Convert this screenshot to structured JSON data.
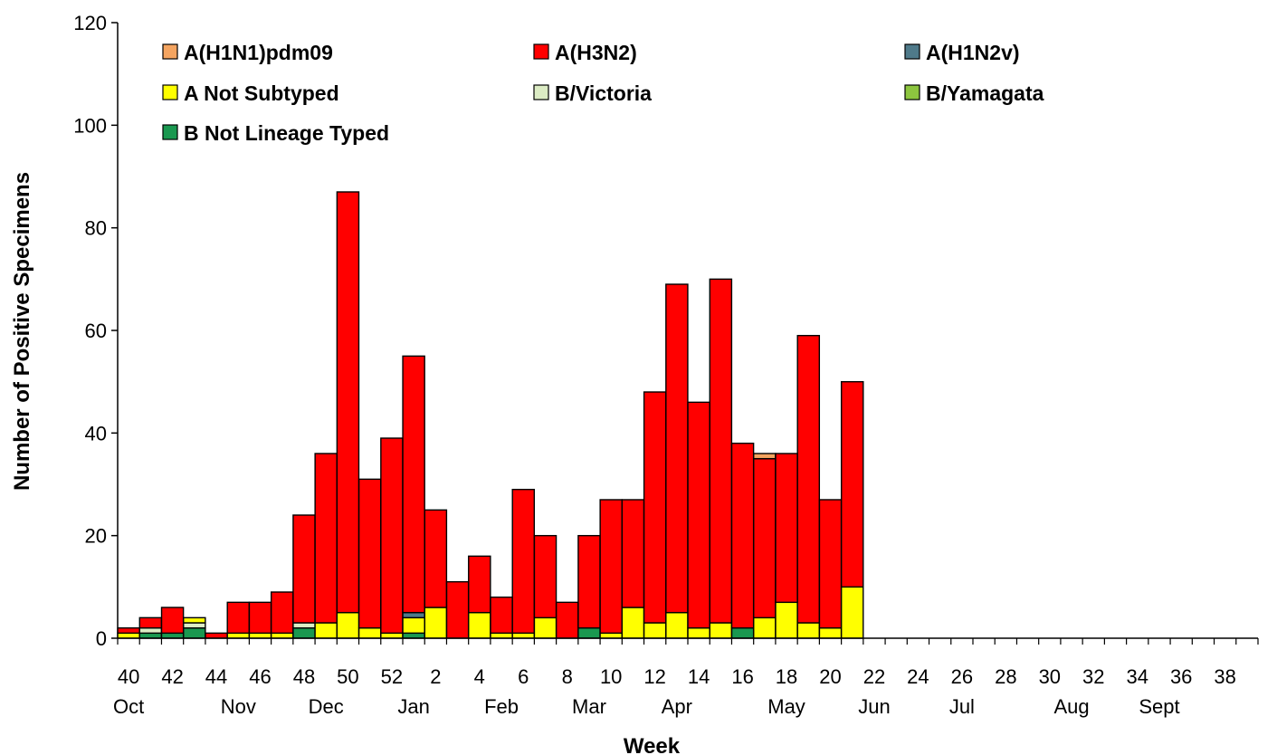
{
  "chart_data": {
    "type": "bar",
    "stacked": true,
    "title": "",
    "xlabel": "Week",
    "ylabel": "Number of Positive Specimens",
    "ylim": [
      0,
      120
    ],
    "yticks": [
      "0",
      "20",
      "40",
      "60",
      "80",
      "100",
      "120"
    ],
    "grid": false,
    "legend_placement": "top-left",
    "categories": [
      "40",
      "41",
      "42",
      "43",
      "44",
      "45",
      "46",
      "47",
      "48",
      "49",
      "50",
      "51",
      "52",
      "1",
      "2",
      "3",
      "4",
      "5",
      "6",
      "7",
      "8",
      "9",
      "10",
      "11",
      "12",
      "13",
      "14",
      "15",
      "16",
      "17",
      "18",
      "19",
      "20",
      "21",
      "22",
      "23",
      "24",
      "25",
      "26",
      "27",
      "28",
      "29",
      "30",
      "31",
      "32",
      "33",
      "34",
      "35",
      "36",
      "37",
      "38",
      "39"
    ],
    "tick_labels": [
      "40",
      "42",
      "44",
      "46",
      "48",
      "50",
      "52",
      "2",
      "4",
      "6",
      "8",
      "10",
      "12",
      "14",
      "16",
      "18",
      "20",
      "22",
      "24",
      "26",
      "28",
      "30",
      "32",
      "34",
      "36",
      "38"
    ],
    "month_labels": [
      {
        "label": "Oct",
        "at": "40"
      },
      {
        "label": "Nov",
        "at": "45"
      },
      {
        "label": "Dec",
        "at": "49"
      },
      {
        "label": "Jan",
        "at": "1"
      },
      {
        "label": "Feb",
        "at": "5"
      },
      {
        "label": "Mar",
        "at": "9"
      },
      {
        "label": "Apr",
        "at": "13"
      },
      {
        "label": "May",
        "at": "18"
      },
      {
        "label": "Jun",
        "at": "22"
      },
      {
        "label": "Jul",
        "at": "26"
      },
      {
        "label": "Aug",
        "at": "31"
      },
      {
        "label": "Sept",
        "at": "35"
      }
    ],
    "series": [
      {
        "name": "B Not Lineage Typed",
        "color": "#1a9850",
        "values": [
          0,
          1,
          1,
          2,
          0,
          0,
          0,
          0,
          2,
          0,
          0,
          0,
          0,
          1,
          0,
          0,
          0,
          0,
          0,
          0,
          0,
          2,
          0,
          0,
          0,
          0,
          0,
          0,
          2,
          0,
          0,
          0,
          0,
          0,
          0,
          0,
          0,
          0,
          0,
          0,
          0,
          0,
          0,
          0,
          0,
          0,
          0,
          0,
          0,
          0,
          0,
          0
        ]
      },
      {
        "name": "B/Yamagata",
        "color": "#8dc63f",
        "values": [
          0,
          0,
          0,
          0,
          0,
          0,
          0,
          0,
          0,
          0,
          0,
          0,
          0,
          0,
          0,
          0,
          0,
          0,
          0,
          0,
          0,
          0,
          0,
          0,
          0,
          0,
          0,
          0,
          0,
          0,
          0,
          0,
          0,
          0,
          0,
          0,
          0,
          0,
          0,
          0,
          0,
          0,
          0,
          0,
          0,
          0,
          0,
          0,
          0,
          0,
          0,
          0
        ]
      },
      {
        "name": "B/Victoria",
        "color": "#dcecc4",
        "values": [
          0,
          1,
          0,
          1,
          0,
          0,
          0,
          0,
          1,
          0,
          0,
          0,
          0,
          0,
          0,
          0,
          0,
          0,
          0,
          0,
          0,
          0,
          0,
          0,
          0,
          0,
          0,
          0,
          0,
          0,
          0,
          0,
          0,
          0,
          0,
          0,
          0,
          0,
          0,
          0,
          0,
          0,
          0,
          0,
          0,
          0,
          0,
          0,
          0,
          0,
          0,
          0
        ]
      },
      {
        "name": "A Not Subtyped",
        "color": "#ffff00",
        "values": [
          1,
          0,
          0,
          1,
          0,
          1,
          1,
          1,
          0,
          3,
          5,
          2,
          1,
          3,
          6,
          0,
          5,
          1,
          1,
          4,
          0,
          0,
          1,
          6,
          3,
          5,
          2,
          3,
          0,
          4,
          7,
          3,
          2,
          10,
          0,
          0,
          0,
          0,
          0,
          0,
          0,
          0,
          0,
          0,
          0,
          0,
          0,
          0,
          0,
          0,
          0,
          0
        ]
      },
      {
        "name": "A(H1N2v)",
        "color": "#4f7a8a",
        "values": [
          0,
          0,
          0,
          0,
          0,
          0,
          0,
          0,
          0,
          0,
          0,
          0,
          0,
          1,
          0,
          0,
          0,
          0,
          0,
          0,
          0,
          0,
          0,
          0,
          0,
          0,
          0,
          0,
          0,
          0,
          0,
          0,
          0,
          0,
          0,
          0,
          0,
          0,
          0,
          0,
          0,
          0,
          0,
          0,
          0,
          0,
          0,
          0,
          0,
          0,
          0,
          0
        ]
      },
      {
        "name": "A(H3N2)",
        "color": "#ff0000",
        "values": [
          1,
          2,
          5,
          0,
          1,
          6,
          6,
          8,
          21,
          33,
          82,
          29,
          38,
          50,
          19,
          11,
          11,
          7,
          28,
          16,
          7,
          18,
          26,
          21,
          45,
          64,
          44,
          67,
          36,
          31,
          29,
          56,
          25,
          40,
          0,
          0,
          0,
          0,
          0,
          0,
          0,
          0,
          0,
          0,
          0,
          0,
          0,
          0,
          0,
          0,
          0,
          0
        ]
      },
      {
        "name": "A(H1N1)pdm09",
        "color": "#f4a460",
        "values": [
          0,
          0,
          0,
          0,
          0,
          0,
          0,
          0,
          0,
          0,
          0,
          0,
          0,
          0,
          0,
          0,
          0,
          0,
          0,
          0,
          0,
          0,
          0,
          0,
          0,
          0,
          0,
          0,
          0,
          1,
          0,
          0,
          0,
          0,
          0,
          0,
          0,
          0,
          0,
          0,
          0,
          0,
          0,
          0,
          0,
          0,
          0,
          0,
          0,
          0,
          0,
          0
        ]
      }
    ],
    "legend_order": [
      "A(H1N1)pdm09",
      "A(H3N2)",
      "A(H1N2v)",
      "A Not Subtyped",
      "B/Victoria",
      "B/Yamagata",
      "B Not Lineage Typed"
    ]
  }
}
